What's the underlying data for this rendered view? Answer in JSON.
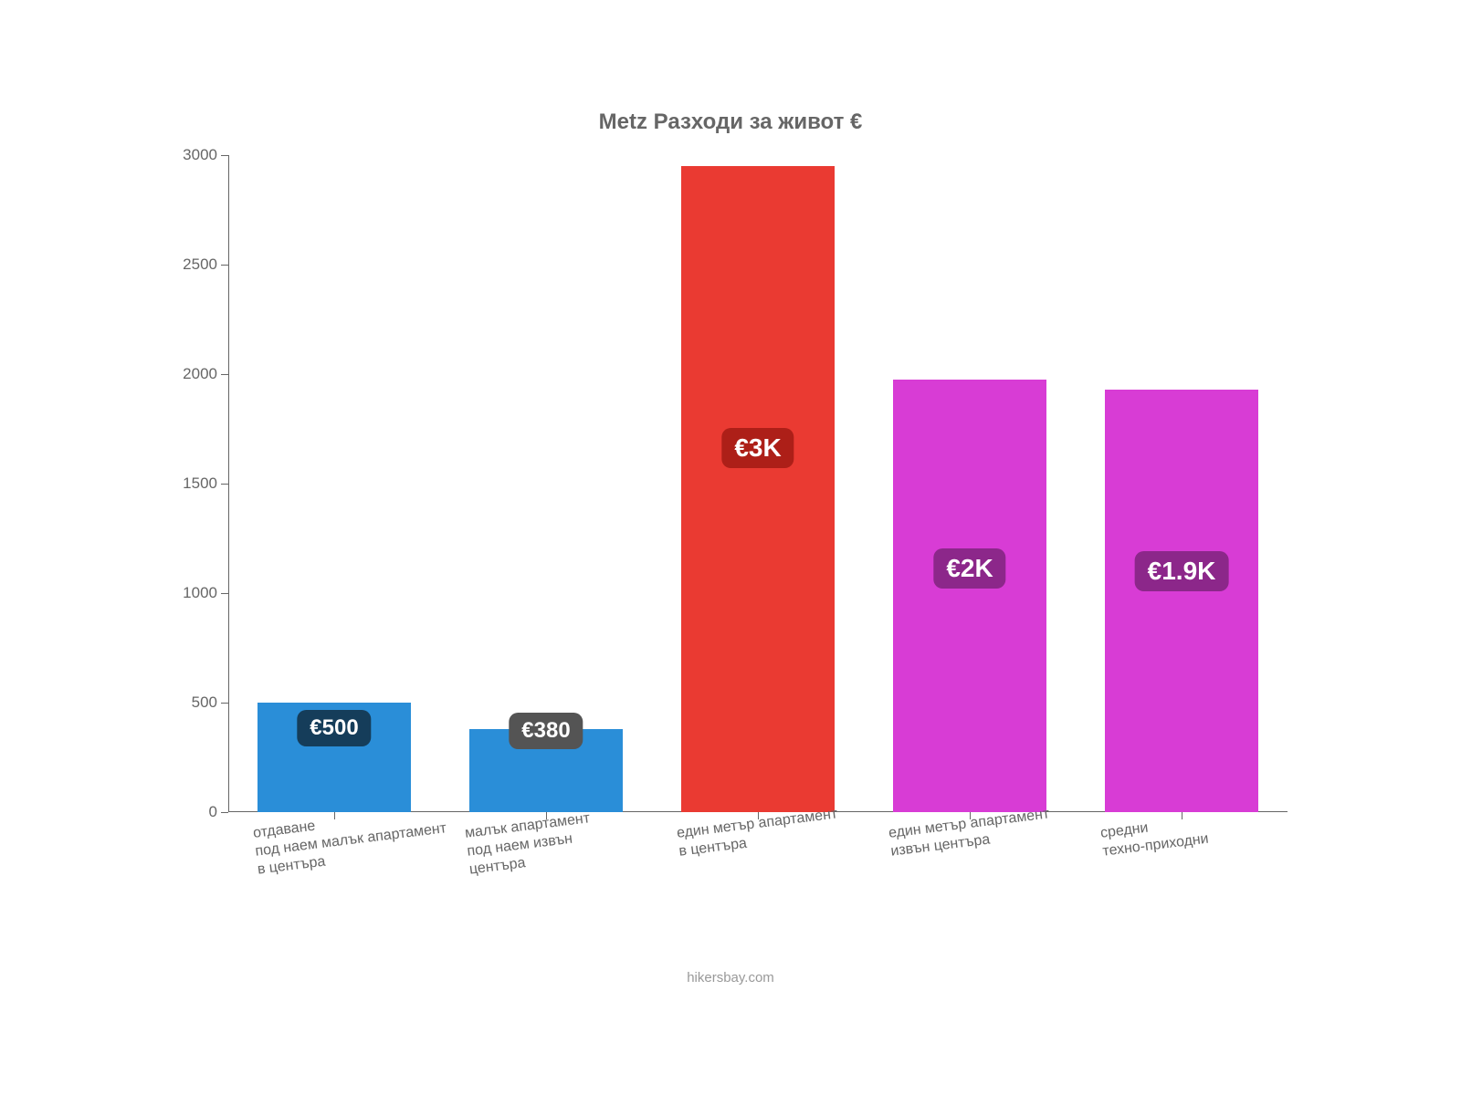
{
  "chart": {
    "type": "bar",
    "title": "Metz Разходи за живот €",
    "title_fontsize": 24,
    "title_color": "#666666",
    "background_color": "#ffffff",
    "axis_color": "#666666",
    "tick_label_color": "#666666",
    "tick_label_fontsize": 17,
    "xlabel_fontsize": 16,
    "ylim": [
      0,
      3000
    ],
    "ytick_step": 500,
    "yticks": [
      0,
      500,
      1000,
      1500,
      2000,
      2500,
      3000
    ],
    "bar_width": 0.72,
    "bars": [
      {
        "category": "отдаване\nпод наем малък апартамент\nв центъра",
        "value": 500,
        "color": "#2a8ed8",
        "badge_text": "€500",
        "badge_bg": "#153d5a",
        "badge_fontsize": 24,
        "badge_y": 390
      },
      {
        "category": "малък апартамент\nпод наем извън\nцентъра",
        "value": 380,
        "color": "#2a8ed8",
        "badge_text": "€380",
        "badge_bg": "#545454",
        "badge_fontsize": 24,
        "badge_y": 380
      },
      {
        "category": "един метър апартамент\nв центъра",
        "value": 2950,
        "color": "#ea3a32",
        "badge_text": "€3K",
        "badge_bg": "#ad1f18",
        "badge_fontsize": 28,
        "badge_y": 1670
      },
      {
        "category": "един метър апартамент\nизвън центъра",
        "value": 1975,
        "color": "#d83cd5",
        "badge_text": "€2K",
        "badge_bg": "#8c278a",
        "badge_fontsize": 28,
        "badge_y": 1120
      },
      {
        "category": "средни\nтехно-приходни",
        "value": 1930,
        "color": "#d83cd5",
        "badge_text": "€1.9K",
        "badge_bg": "#8c278a",
        "badge_fontsize": 28,
        "badge_y": 1110
      }
    ],
    "attribution": "hikersbay.com",
    "attribution_fontsize": 15,
    "attribution_color": "#999999",
    "xlabel_rotate_deg": -7
  }
}
